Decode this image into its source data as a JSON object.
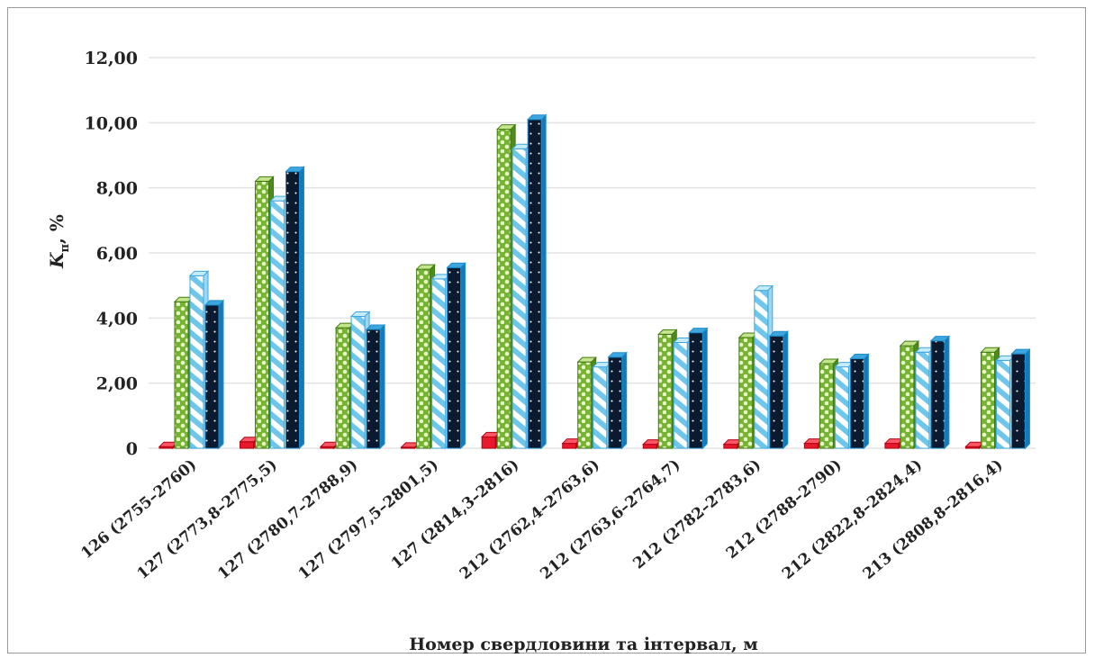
{
  "chart_data": {
    "type": "bar",
    "ylabel_main": "K",
    "ylabel_sub": "п",
    "ylabel_unit": ", %",
    "xlabel": "Номер свердловини та інтервал, м",
    "ylim": [
      0,
      12
    ],
    "yticks": [
      "0",
      "2,00",
      "4,00",
      "6,00",
      "8,00",
      "10,00",
      "12,00"
    ],
    "ytick_values": [
      0,
      2,
      4,
      6,
      8,
      10,
      12
    ],
    "categories": [
      "126 (2755–2760)",
      "127 (2773,8–2775,5)",
      "127 (2780,7–2788,9)",
      "127 (2797,5–2801,5)",
      "127 (2814,3–2816)",
      "212 (2762,4–2763,6)",
      "212 (2763,6–2764,7)",
      "212 (2782–2783,6)",
      "212 (2788–2790)",
      "212 (2822,8–2824,4)",
      "213 (2808,8–2816,4)"
    ],
    "series": [
      {
        "values": [
          0.05,
          0.2,
          0.05,
          0.03,
          0.35,
          0.15,
          0.12,
          0.12,
          0.15,
          0.15,
          0.05
        ],
        "color": "#e8192c",
        "pattern": "solid"
      },
      {
        "values": [
          4.5,
          8.2,
          3.7,
          5.5,
          9.8,
          2.65,
          3.5,
          3.4,
          2.6,
          3.15,
          2.95
        ],
        "color": "#6aa82c",
        "pattern": "dots-green"
      },
      {
        "values": [
          5.3,
          7.6,
          4.05,
          5.2,
          9.2,
          2.5,
          3.25,
          4.85,
          2.5,
          2.95,
          2.7
        ],
        "color": "#6ec6ea",
        "pattern": "stripes-blue"
      },
      {
        "values": [
          4.4,
          8.5,
          3.65,
          5.55,
          10.1,
          2.8,
          3.55,
          3.45,
          2.75,
          3.3,
          2.9
        ],
        "color": "#0b1a2e",
        "pattern": "dots-dark"
      }
    ],
    "grid": true,
    "legend": "none"
  }
}
